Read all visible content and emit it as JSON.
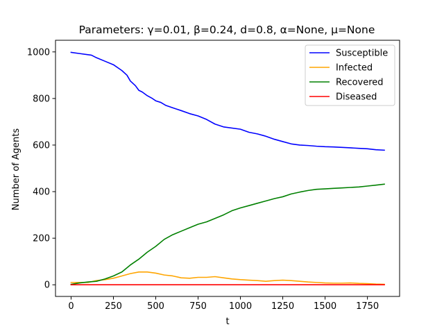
{
  "chart_data": {
    "type": "line",
    "title": "Parameters: γ=0.01, β=0.24, d=0.8, α=None, μ=None",
    "xlabel": "t",
    "ylabel": "Number of Agents",
    "xlim": [
      -92,
      1940
    ],
    "ylim": [
      -50,
      1050
    ],
    "xticks": [
      0,
      250,
      500,
      750,
      1000,
      1250,
      1500,
      1750
    ],
    "xtick_labels": [
      "0",
      "250",
      "500",
      "750",
      "1000",
      "1250",
      "1500",
      "1750"
    ],
    "yticks": [
      0,
      200,
      400,
      600,
      800,
      1000
    ],
    "ytick_labels": [
      "0",
      "200",
      "400",
      "600",
      "800",
      "1000"
    ],
    "grid": false,
    "legend_position": "top-right",
    "series": [
      {
        "name": "Susceptible",
        "color": "#0000ff",
        "x": [
          0,
          50,
          100,
          120,
          150,
          200,
          250,
          300,
          330,
          350,
          380,
          400,
          420,
          450,
          480,
          500,
          530,
          560,
          600,
          650,
          700,
          750,
          800,
          850,
          900,
          1000,
          1050,
          1100,
          1150,
          1200,
          1250,
          1300,
          1350,
          1400,
          1450,
          1500,
          1550,
          1600,
          1650,
          1700,
          1750,
          1800,
          1850
        ],
        "y": [
          998,
          993,
          988,
          986,
          975,
          960,
          945,
          920,
          900,
          875,
          855,
          835,
          828,
          812,
          800,
          790,
          783,
          770,
          760,
          748,
          735,
          725,
          710,
          690,
          678,
          668,
          655,
          648,
          638,
          625,
          615,
          605,
          600,
          598,
          595,
          593,
          592,
          590,
          588,
          586,
          584,
          580,
          578
        ]
      },
      {
        "name": "Infected",
        "color": "#ffa500",
        "x": [
          0,
          50,
          100,
          150,
          200,
          250,
          300,
          350,
          400,
          450,
          500,
          550,
          600,
          650,
          700,
          750,
          800,
          850,
          900,
          950,
          1000,
          1050,
          1100,
          1150,
          1200,
          1250,
          1300,
          1350,
          1400,
          1450,
          1500,
          1550,
          1600,
          1650,
          1700,
          1750,
          1800,
          1850
        ],
        "y": [
          10,
          10,
          10,
          18,
          22,
          28,
          38,
          48,
          55,
          55,
          50,
          42,
          38,
          30,
          28,
          32,
          32,
          35,
          30,
          25,
          22,
          20,
          18,
          15,
          18,
          20,
          18,
          15,
          12,
          10,
          8,
          7,
          7,
          8,
          6,
          5,
          3,
          2
        ]
      },
      {
        "name": "Recovered",
        "color": "#008000",
        "x": [
          0,
          50,
          100,
          150,
          200,
          250,
          300,
          350,
          400,
          450,
          500,
          550,
          600,
          650,
          700,
          750,
          800,
          850,
          900,
          950,
          1000,
          1050,
          1100,
          1150,
          1200,
          1250,
          1300,
          1350,
          1400,
          1450,
          1500,
          1550,
          1600,
          1650,
          1700,
          1750,
          1800,
          1850
        ],
        "y": [
          2,
          8,
          12,
          15,
          25,
          38,
          55,
          85,
          110,
          140,
          165,
          195,
          215,
          230,
          245,
          260,
          270,
          285,
          300,
          318,
          330,
          340,
          350,
          360,
          370,
          378,
          390,
          398,
          405,
          410,
          412,
          414,
          416,
          418,
          420,
          424,
          428,
          432
        ]
      },
      {
        "name": "Diseased",
        "color": "#ff0000",
        "x": [
          0,
          1850
        ],
        "y": [
          0,
          0
        ]
      }
    ]
  }
}
